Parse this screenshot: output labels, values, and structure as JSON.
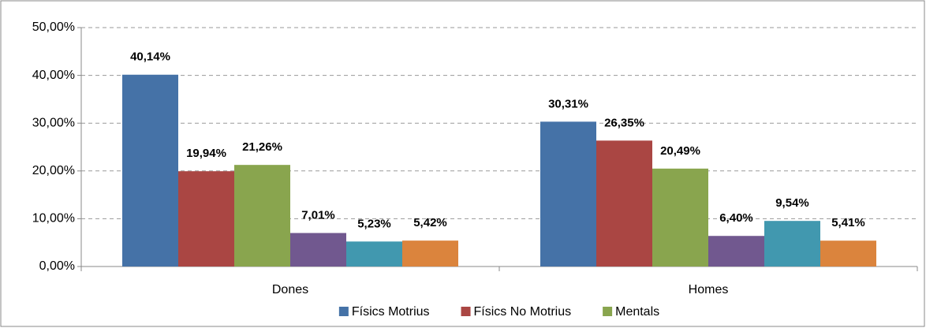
{
  "chart_data": {
    "type": "bar",
    "categories": [
      "Dones",
      "Homes"
    ],
    "series": [
      {
        "name": "Físics Motrius",
        "color": "#4572a7",
        "values": [
          40.14,
          30.31
        ],
        "value_labels": [
          "40,14%",
          "30,31%"
        ]
      },
      {
        "name": "Físics No Motrius",
        "color": "#aa4643",
        "values": [
          19.94,
          26.35
        ],
        "value_labels": [
          "19,94%",
          "26,35%"
        ]
      },
      {
        "name": "Mentals",
        "color": "#89a54e",
        "values": [
          21.26,
          20.49
        ],
        "value_labels": [
          "21,26%",
          "20,49%"
        ]
      },
      {
        "color": "#71588f",
        "values": [
          7.01,
          6.4
        ],
        "value_labels": [
          "7,01%",
          "6,40%"
        ]
      },
      {
        "color": "#4198af",
        "values": [
          5.23,
          9.54
        ],
        "value_labels": [
          "5,23%",
          "9,54%"
        ]
      },
      {
        "color": "#db843d",
        "values": [
          5.42,
          5.41
        ],
        "value_labels": [
          "5,42%",
          "5,41%"
        ]
      }
    ],
    "ylim": [
      0,
      50
    ],
    "yticks": [
      {
        "value": 0,
        "label": "0,00%"
      },
      {
        "value": 10,
        "label": "10,00%"
      },
      {
        "value": 20,
        "label": "20,00%"
      },
      {
        "value": 30,
        "label": "30,00%"
      },
      {
        "value": 40,
        "label": "40,00%"
      },
      {
        "value": 50,
        "label": "50,00%"
      }
    ],
    "grid": true,
    "legend": "bottom"
  }
}
